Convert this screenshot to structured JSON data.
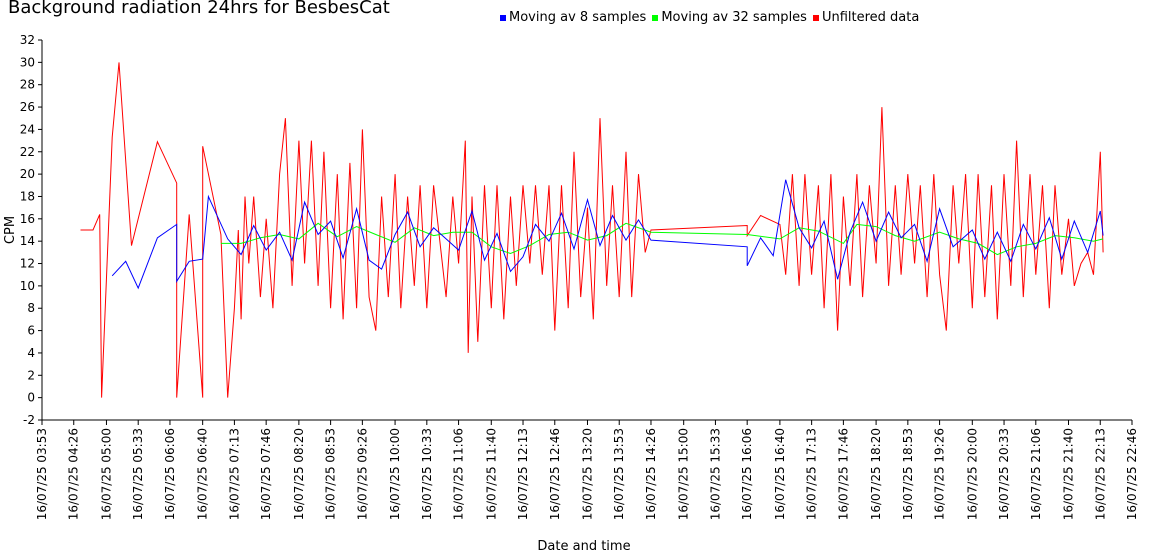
{
  "chart_data": {
    "type": "line",
    "title": "Background radiation 24hrs for BesbesCat",
    "xlabel": "Date and time",
    "ylabel": "CPM",
    "ylim": [
      -2,
      32
    ],
    "yticks": [
      -2,
      0,
      2,
      4,
      6,
      8,
      10,
      12,
      14,
      16,
      18,
      20,
      22,
      24,
      26,
      28,
      30,
      32
    ],
    "xlim": [
      "16/07/25 03:53",
      "16/07/25 22:46"
    ],
    "xticks": [
      "16/07/25 03:53",
      "16/07/25 04:26",
      "16/07/25 05:00",
      "16/07/25 05:33",
      "16/07/25 06:06",
      "16/07/25 06:40",
      "16/07/25 07:13",
      "16/07/25 07:46",
      "16/07/25 08:20",
      "16/07/25 08:53",
      "16/07/25 09:26",
      "16/07/25 10:00",
      "16/07/25 10:33",
      "16/07/25 11:06",
      "16/07/25 11:40",
      "16/07/25 12:13",
      "16/07/25 12:46",
      "16/07/25 13:20",
      "16/07/25 13:53",
      "16/07/25 14:26",
      "16/07/25 15:00",
      "16/07/25 15:33",
      "16/07/25 16:06",
      "16/07/25 16:40",
      "16/07/25 17:13",
      "16/07/25 17:46",
      "16/07/25 18:20",
      "16/07/25 18:53",
      "16/07/25 19:26",
      "16/07/25 20:00",
      "16/07/25 20:33",
      "16/07/25 21:06",
      "16/07/25 21:40",
      "16/07/25 22:13",
      "16/07/25 22:46"
    ],
    "grid": false,
    "legend_position": "top",
    "series": [
      {
        "name": "Moving av 8 samples",
        "color": "#0000ff",
        "points": [
          [
            "16/07/25 05:06",
            10.9
          ],
          [
            "16/07/25 05:20",
            12.2
          ],
          [
            "16/07/25 05:33",
            9.8
          ],
          [
            "16/07/25 05:53",
            14.3
          ],
          [
            "16/07/25 06:13",
            15.5
          ],
          [
            "16/07/25 06:13",
            10.4
          ],
          [
            "16/07/25 06:26",
            12.2
          ],
          [
            "16/07/25 06:40",
            12.4
          ],
          [
            "16/07/25 06:46",
            18
          ],
          [
            "16/07/25 07:06",
            14.2
          ],
          [
            "16/07/25 07:20",
            12.8
          ],
          [
            "16/07/25 07:33",
            15.4
          ],
          [
            "16/07/25 07:46",
            13.2
          ],
          [
            "16/07/25 08:00",
            14.8
          ],
          [
            "16/07/25 08:13",
            12.3
          ],
          [
            "16/07/25 08:26",
            17.5
          ],
          [
            "16/07/25 08:40",
            14.6
          ],
          [
            "16/07/25 08:53",
            15.8
          ],
          [
            "16/07/25 09:06",
            12.5
          ],
          [
            "16/07/25 09:20",
            16.9
          ],
          [
            "16/07/25 09:33",
            12.3
          ],
          [
            "16/07/25 09:46",
            11.5
          ],
          [
            "16/07/25 10:00",
            14.6
          ],
          [
            "16/07/25 10:13",
            16.6
          ],
          [
            "16/07/25 10:26",
            13.5
          ],
          [
            "16/07/25 10:40",
            15.2
          ],
          [
            "16/07/25 10:53",
            14.2
          ],
          [
            "16/07/25 11:06",
            13.2
          ],
          [
            "16/07/25 11:20",
            16.7
          ],
          [
            "16/07/25 11:33",
            12.3
          ],
          [
            "16/07/25 11:46",
            14.7
          ],
          [
            "16/07/25 12:00",
            11.3
          ],
          [
            "16/07/25 12:13",
            12.6
          ],
          [
            "16/07/25 12:26",
            15.5
          ],
          [
            "16/07/25 12:40",
            14
          ],
          [
            "16/07/25 12:53",
            16.5
          ],
          [
            "16/07/25 13:06",
            13.3
          ],
          [
            "16/07/25 13:20",
            17.7
          ],
          [
            "16/07/25 13:33",
            13.6
          ],
          [
            "16/07/25 13:46",
            16.3
          ],
          [
            "16/07/25 14:00",
            14.1
          ],
          [
            "16/07/25 14:13",
            15.9
          ],
          [
            "16/07/25 14:26",
            14.1
          ],
          [
            "16/07/25 16:06",
            13.5
          ],
          [
            "16/07/25 16:06",
            11.8
          ],
          [
            "16/07/25 16:20",
            14.3
          ],
          [
            "16/07/25 16:33",
            12.7
          ],
          [
            "16/07/25 16:46",
            19.5
          ],
          [
            "16/07/25 17:00",
            15.2
          ],
          [
            "16/07/25 17:13",
            13.4
          ],
          [
            "16/07/25 17:26",
            15.8
          ],
          [
            "16/07/25 17:40",
            10.6
          ],
          [
            "16/07/25 17:53",
            14.8
          ],
          [
            "16/07/25 18:06",
            17.5
          ],
          [
            "16/07/25 18:20",
            14
          ],
          [
            "16/07/25 18:33",
            16.6
          ],
          [
            "16/07/25 18:46",
            14.3
          ],
          [
            "16/07/25 19:00",
            15.5
          ],
          [
            "16/07/25 19:13",
            12.2
          ],
          [
            "16/07/25 19:26",
            16.9
          ],
          [
            "16/07/25 19:40",
            13.5
          ],
          [
            "16/07/25 20:00",
            15
          ],
          [
            "16/07/25 20:13",
            12.4
          ],
          [
            "16/07/25 20:26",
            14.8
          ],
          [
            "16/07/25 20:40",
            12.2
          ],
          [
            "16/07/25 20:53",
            15.5
          ],
          [
            "16/07/25 21:06",
            13.3
          ],
          [
            "16/07/25 21:20",
            16.1
          ],
          [
            "16/07/25 21:33",
            12.4
          ],
          [
            "16/07/25 21:46",
            15.8
          ],
          [
            "16/07/25 22:00",
            13
          ],
          [
            "16/07/25 22:13",
            16.7
          ],
          [
            "16/07/25 22:16",
            14.5
          ]
        ]
      },
      {
        "name": "Moving av 32 samples",
        "color": "#00ff00",
        "points": [
          [
            "16/07/25 06:59",
            13.8
          ],
          [
            "16/07/25 07:20",
            13.8
          ],
          [
            "16/07/25 07:40",
            14.3
          ],
          [
            "16/07/25 08:00",
            14.6
          ],
          [
            "16/07/25 08:20",
            14.2
          ],
          [
            "16/07/25 08:40",
            15.6
          ],
          [
            "16/07/25 09:00",
            14.4
          ],
          [
            "16/07/25 09:20",
            15.3
          ],
          [
            "16/07/25 09:40",
            14.6
          ],
          [
            "16/07/25 10:00",
            13.9
          ],
          [
            "16/07/25 10:20",
            15.2
          ],
          [
            "16/07/25 10:40",
            14.5
          ],
          [
            "16/07/25 11:00",
            14.8
          ],
          [
            "16/07/25 11:20",
            14.8
          ],
          [
            "16/07/25 11:40",
            13.5
          ],
          [
            "16/07/25 12:00",
            12.9
          ],
          [
            "16/07/25 12:20",
            13.6
          ],
          [
            "16/07/25 12:40",
            14.6
          ],
          [
            "16/07/25 13:00",
            14.8
          ],
          [
            "16/07/25 13:20",
            14.1
          ],
          [
            "16/07/25 13:40",
            14.5
          ],
          [
            "16/07/25 14:00",
            15.6
          ],
          [
            "16/07/25 14:26",
            14.8
          ],
          [
            "16/07/25 16:06",
            14.6
          ],
          [
            "16/07/25 16:40",
            14.2
          ],
          [
            "16/07/25 17:00",
            15.2
          ],
          [
            "16/07/25 17:20",
            14.9
          ],
          [
            "16/07/25 17:46",
            13.8
          ],
          [
            "16/07/25 18:00",
            15.5
          ],
          [
            "16/07/25 18:20",
            15.3
          ],
          [
            "16/07/25 18:40",
            14.5
          ],
          [
            "16/07/25 19:00",
            14
          ],
          [
            "16/07/25 19:26",
            14.8
          ],
          [
            "16/07/25 19:46",
            14.2
          ],
          [
            "16/07/25 20:06",
            13.8
          ],
          [
            "16/07/25 20:26",
            12.8
          ],
          [
            "16/07/25 20:46",
            13.5
          ],
          [
            "16/07/25 21:06",
            13.8
          ],
          [
            "16/07/25 21:26",
            14.5
          ],
          [
            "16/07/25 21:46",
            14.3
          ],
          [
            "16/07/25 22:06",
            14
          ],
          [
            "16/07/25 22:16",
            14.2
          ]
        ]
      },
      {
        "name": "Unfiltered data",
        "color": "#ff0000",
        "points": [
          [
            "16/07/25 04:33",
            15
          ],
          [
            "16/07/25 04:46",
            15
          ],
          [
            "16/07/25 04:53",
            16.4
          ],
          [
            "16/07/25 04:55",
            0
          ],
          [
            "16/07/25 05:06",
            23.3
          ],
          [
            "16/07/25 05:13",
            30
          ],
          [
            "16/07/25 05:26",
            13.6
          ],
          [
            "16/07/25 05:53",
            22.9
          ],
          [
            "16/07/25 06:13",
            19.2
          ],
          [
            "16/07/25 06:13",
            0
          ],
          [
            "16/07/25 06:26",
            16.4
          ],
          [
            "16/07/25 06:40",
            0
          ],
          [
            "16/07/25 06:40",
            22.5
          ],
          [
            "16/07/25 06:59",
            14.6
          ],
          [
            "16/07/25 07:06",
            0
          ],
          [
            "16/07/25 07:13",
            8
          ],
          [
            "16/07/25 07:17",
            15
          ],
          [
            "16/07/25 07:20",
            7
          ],
          [
            "16/07/25 07:24",
            18
          ],
          [
            "16/07/25 07:28",
            12
          ],
          [
            "16/07/25 07:33",
            18
          ],
          [
            "16/07/25 07:40",
            9
          ],
          [
            "16/07/25 07:46",
            16
          ],
          [
            "16/07/25 07:53",
            8
          ],
          [
            "16/07/25 08:00",
            20
          ],
          [
            "16/07/25 08:06",
            25
          ],
          [
            "16/07/25 08:13",
            10
          ],
          [
            "16/07/25 08:20",
            23
          ],
          [
            "16/07/25 08:26",
            12
          ],
          [
            "16/07/25 08:33",
            23
          ],
          [
            "16/07/25 08:40",
            10
          ],
          [
            "16/07/25 08:46",
            22
          ],
          [
            "16/07/25 08:53",
            8
          ],
          [
            "16/07/25 09:00",
            20
          ],
          [
            "16/07/25 09:06",
            7
          ],
          [
            "16/07/25 09:13",
            21
          ],
          [
            "16/07/25 09:20",
            8
          ],
          [
            "16/07/25 09:26",
            24
          ],
          [
            "16/07/25 09:33",
            9
          ],
          [
            "16/07/25 09:40",
            6
          ],
          [
            "16/07/25 09:46",
            18
          ],
          [
            "16/07/25 09:53",
            9
          ],
          [
            "16/07/25 10:00",
            20
          ],
          [
            "16/07/25 10:06",
            8
          ],
          [
            "16/07/25 10:13",
            18
          ],
          [
            "16/07/25 10:20",
            10
          ],
          [
            "16/07/25 10:26",
            19
          ],
          [
            "16/07/25 10:33",
            8
          ],
          [
            "16/07/25 10:40",
            19
          ],
          [
            "16/07/25 10:53",
            9
          ],
          [
            "16/07/25 11:00",
            18
          ],
          [
            "16/07/25 11:06",
            12
          ],
          [
            "16/07/25 11:13",
            23
          ],
          [
            "16/07/25 11:16",
            4
          ],
          [
            "16/07/25 11:20",
            18
          ],
          [
            "16/07/25 11:26",
            5
          ],
          [
            "16/07/25 11:33",
            19
          ],
          [
            "16/07/25 11:40",
            8
          ],
          [
            "16/07/25 11:46",
            19
          ],
          [
            "16/07/25 11:53",
            7
          ],
          [
            "16/07/25 12:00",
            18
          ],
          [
            "16/07/25 12:06",
            10
          ],
          [
            "16/07/25 12:13",
            19
          ],
          [
            "16/07/25 12:20",
            12
          ],
          [
            "16/07/25 12:26",
            19
          ],
          [
            "16/07/25 12:33",
            11
          ],
          [
            "16/07/25 12:40",
            19
          ],
          [
            "16/07/25 12:46",
            6
          ],
          [
            "16/07/25 12:53",
            19
          ],
          [
            "16/07/25 13:00",
            8
          ],
          [
            "16/07/25 13:06",
            22
          ],
          [
            "16/07/25 13:13",
            9
          ],
          [
            "16/07/25 13:20",
            17
          ],
          [
            "16/07/25 13:26",
            7
          ],
          [
            "16/07/25 13:33",
            25
          ],
          [
            "16/07/25 13:40",
            10
          ],
          [
            "16/07/25 13:46",
            19
          ],
          [
            "16/07/25 13:53",
            9
          ],
          [
            "16/07/25 14:00",
            22
          ],
          [
            "16/07/25 14:06",
            9
          ],
          [
            "16/07/25 14:13",
            20
          ],
          [
            "16/07/25 14:20",
            13
          ],
          [
            "16/07/25 14:26",
            15
          ],
          [
            "16/07/25 16:06",
            15.4
          ],
          [
            "16/07/25 16:06",
            14.5
          ],
          [
            "16/07/25 16:20",
            16.3
          ],
          [
            "16/07/25 16:40",
            15.5
          ],
          [
            "16/07/25 16:46",
            11
          ],
          [
            "16/07/25 16:53",
            20
          ],
          [
            "16/07/25 17:00",
            10
          ],
          [
            "16/07/25 17:06",
            20
          ],
          [
            "16/07/25 17:13",
            11
          ],
          [
            "16/07/25 17:20",
            19
          ],
          [
            "16/07/25 17:26",
            8
          ],
          [
            "16/07/25 17:33",
            20
          ],
          [
            "16/07/25 17:40",
            6
          ],
          [
            "16/07/25 17:46",
            18
          ],
          [
            "16/07/25 17:53",
            10
          ],
          [
            "16/07/25 18:00",
            20
          ],
          [
            "16/07/25 18:06",
            9
          ],
          [
            "16/07/25 18:13",
            19
          ],
          [
            "16/07/25 18:20",
            12
          ],
          [
            "16/07/25 18:26",
            26
          ],
          [
            "16/07/25 18:33",
            10
          ],
          [
            "16/07/25 18:40",
            19
          ],
          [
            "16/07/25 18:46",
            11
          ],
          [
            "16/07/25 18:53",
            20
          ],
          [
            "16/07/25 19:00",
            12
          ],
          [
            "16/07/25 19:06",
            19
          ],
          [
            "16/07/25 19:13",
            9
          ],
          [
            "16/07/25 19:20",
            20
          ],
          [
            "16/07/25 19:26",
            11
          ],
          [
            "16/07/25 19:33",
            6
          ],
          [
            "16/07/25 19:40",
            19
          ],
          [
            "16/07/25 19:46",
            12
          ],
          [
            "16/07/25 19:53",
            20
          ],
          [
            "16/07/25 20:00",
            8
          ],
          [
            "16/07/25 20:06",
            20
          ],
          [
            "16/07/25 20:13",
            9
          ],
          [
            "16/07/25 20:20",
            19
          ],
          [
            "16/07/25 20:26",
            7
          ],
          [
            "16/07/25 20:33",
            20
          ],
          [
            "16/07/25 20:40",
            10
          ],
          [
            "16/07/25 20:46",
            23
          ],
          [
            "16/07/25 20:53",
            9
          ],
          [
            "16/07/25 21:00",
            20
          ],
          [
            "16/07/25 21:06",
            11
          ],
          [
            "16/07/25 21:13",
            19
          ],
          [
            "16/07/25 21:20",
            8
          ],
          [
            "16/07/25 21:26",
            19
          ],
          [
            "16/07/25 21:33",
            11
          ],
          [
            "16/07/25 21:40",
            16
          ],
          [
            "16/07/25 21:46",
            10
          ],
          [
            "16/07/25 21:53",
            12
          ],
          [
            "16/07/25 22:00",
            13
          ],
          [
            "16/07/25 22:06",
            11
          ],
          [
            "16/07/25 22:13",
            22
          ],
          [
            "16/07/25 22:16",
            13
          ]
        ]
      }
    ]
  }
}
